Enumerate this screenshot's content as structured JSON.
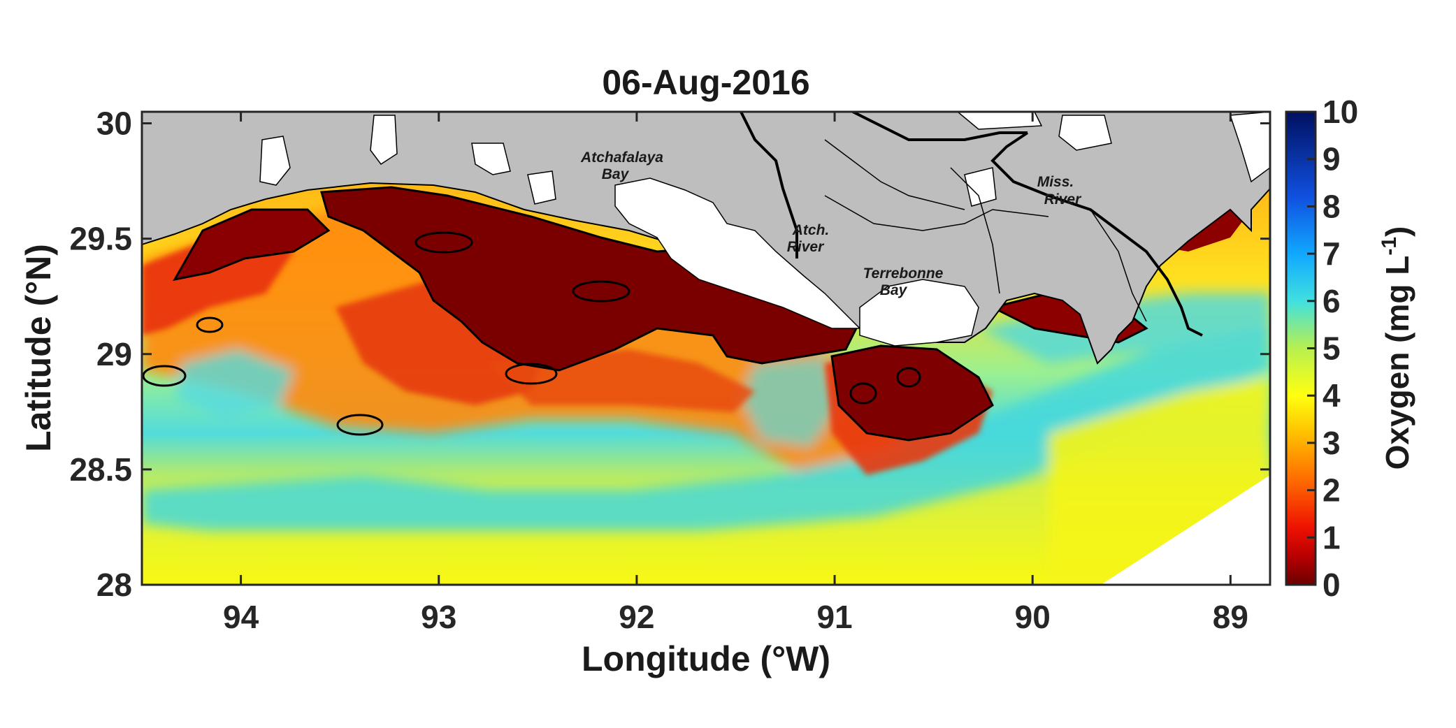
{
  "map": {
    "title": "06-Aug-2016",
    "xlabel": "Longitude (°W)",
    "ylabel": "Latitude (°N)",
    "xticks": [
      "94",
      "93",
      "92",
      "91",
      "90",
      "89"
    ],
    "yticks": [
      "30",
      "29.5",
      "29",
      "28.5",
      "28"
    ],
    "lon_range": [
      94.5,
      88.8
    ],
    "lat_range": [
      28.0,
      30.05
    ],
    "colorbar": {
      "label": "Oxygen (mg L",
      "label_sup": "-1",
      "label_close": ")",
      "ticks": [
        "0",
        "1",
        "2",
        "3",
        "4",
        "5",
        "6",
        "7",
        "8",
        "9",
        "10"
      ],
      "range": [
        0,
        10
      ]
    },
    "places": [
      {
        "lines": [
          "Atchafalaya",
          "Bay"
        ]
      },
      {
        "lines": [
          "Atch.",
          "River"
        ]
      },
      {
        "lines": [
          "Terrebonne",
          "Bay"
        ]
      },
      {
        "lines": [
          "Miss.",
          "River"
        ]
      }
    ],
    "colors": {
      "land": "#bebebe",
      "hypoxic": "#7a0000",
      "low_oxygen": "#e8400a",
      "moderate": "#ffd000",
      "high": "#4fd9e0",
      "offshore": "#f5f514",
      "bay_water": "#ffffff"
    }
  }
}
